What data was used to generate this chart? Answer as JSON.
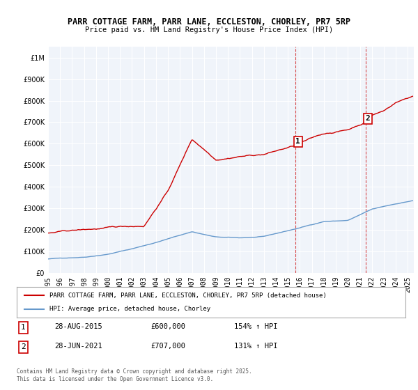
{
  "title1": "PARR COTTAGE FARM, PARR LANE, ECCLESTON, CHORLEY, PR7 5RP",
  "title2": "Price paid vs. HM Land Registry's House Price Index (HPI)",
  "background_color": "#ffffff",
  "plot_bg_color": "#f0f4fa",
  "grid_color": "#ffffff",
  "red_line_color": "#cc0000",
  "blue_line_color": "#6699cc",
  "dashed_color": "#cc0000",
  "ylim": [
    0,
    1050000
  ],
  "yticks": [
    0,
    100000,
    200000,
    300000,
    400000,
    500000,
    600000,
    700000,
    800000,
    900000,
    1000000
  ],
  "ytick_labels": [
    "£0",
    "£100K",
    "£200K",
    "£300K",
    "£400K",
    "£500K",
    "£600K",
    "£700K",
    "£800K",
    "£900K",
    "£1M"
  ],
  "xlim_start": 1995.0,
  "xlim_end": 2025.5,
  "xticks": [
    1995,
    1996,
    1997,
    1998,
    1999,
    2000,
    2001,
    2002,
    2003,
    2004,
    2005,
    2006,
    2007,
    2008,
    2009,
    2010,
    2011,
    2012,
    2013,
    2014,
    2015,
    2016,
    2017,
    2018,
    2019,
    2020,
    2021,
    2022,
    2023,
    2024,
    2025
  ],
  "marker1_x": 2015.65,
  "marker1_y": 600000,
  "marker1_label": "1",
  "marker2_x": 2021.48,
  "marker2_y": 707000,
  "marker2_label": "2",
  "legend_red": "PARR COTTAGE FARM, PARR LANE, ECCLESTON, CHORLEY, PR7 5RP (detached house)",
  "legend_blue": "HPI: Average price, detached house, Chorley",
  "annotation1_num": "1",
  "annotation1_date": "28-AUG-2015",
  "annotation1_price": "£600,000",
  "annotation1_hpi": "154% ↑ HPI",
  "annotation2_num": "2",
  "annotation2_date": "28-JUN-2021",
  "annotation2_price": "£707,000",
  "annotation2_hpi": "131% ↑ HPI",
  "footer": "Contains HM Land Registry data © Crown copyright and database right 2025.\nThis data is licensed under the Open Government Licence v3.0."
}
